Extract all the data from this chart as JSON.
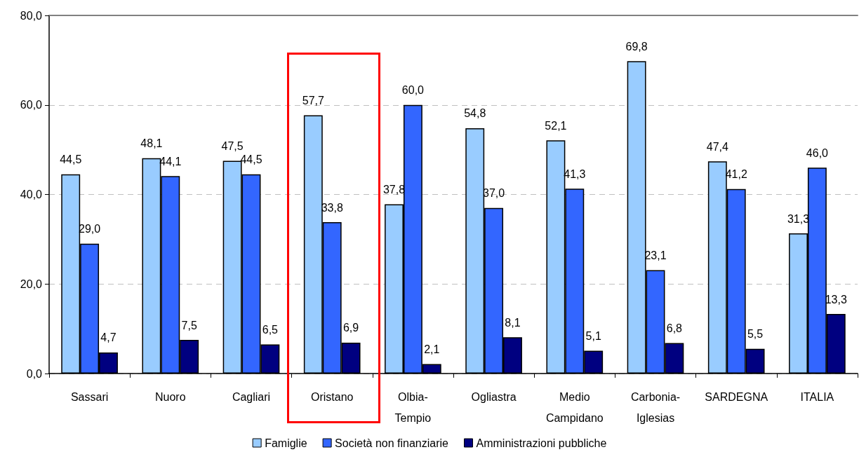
{
  "chart_data": {
    "type": "bar",
    "categories": [
      "Sassari",
      "Nuoro",
      "Cagliari",
      "Oristano",
      "Olbia-Tempio",
      "Ogliastra",
      "Medio Campidano",
      "Carbonia-Iglesias",
      "SARDEGNA",
      "ITALIA"
    ],
    "series": [
      {
        "name": "Famiglie",
        "color": "#99ccff",
        "values": [
          44.5,
          48.1,
          47.5,
          57.7,
          37.8,
          54.8,
          52.1,
          69.8,
          47.4,
          31.3
        ],
        "value_labels": [
          "44,5",
          "48,1",
          "47,5",
          "57,7",
          "37,8",
          "54,8",
          "52,1",
          "69,8",
          "47,4",
          "31,3"
        ]
      },
      {
        "name": "Società non finanziarie",
        "color": "#3366ff",
        "values": [
          29.0,
          44.1,
          44.5,
          33.8,
          60.0,
          37.0,
          41.3,
          23.1,
          41.2,
          46.0
        ],
        "value_labels": [
          "29,0",
          "44,1",
          "44,5",
          "33,8",
          "60,0",
          "37,0",
          "41,3",
          "23,1",
          "41,2",
          "46,0"
        ]
      },
      {
        "name": "Amministrazioni pubbliche",
        "color": "#000080",
        "values": [
          4.7,
          7.5,
          6.5,
          6.9,
          2.1,
          8.1,
          5.1,
          6.8,
          5.5,
          13.3
        ],
        "value_labels": [
          "4,7",
          "7,5",
          "6,5",
          "6,9",
          "2,1",
          "8,1",
          "5,1",
          "6,8",
          "5,5",
          "13,3"
        ]
      }
    ],
    "ylim": [
      0,
      80
    ],
    "yticks": [
      {
        "value": 0,
        "label": "0,0"
      },
      {
        "value": 20,
        "label": "20,0"
      },
      {
        "value": 40,
        "label": "40,0"
      },
      {
        "value": 60,
        "label": "60,0"
      },
      {
        "value": 80,
        "label": "80,0"
      }
    ],
    "grid": "y",
    "legend": "bottom"
  }
}
